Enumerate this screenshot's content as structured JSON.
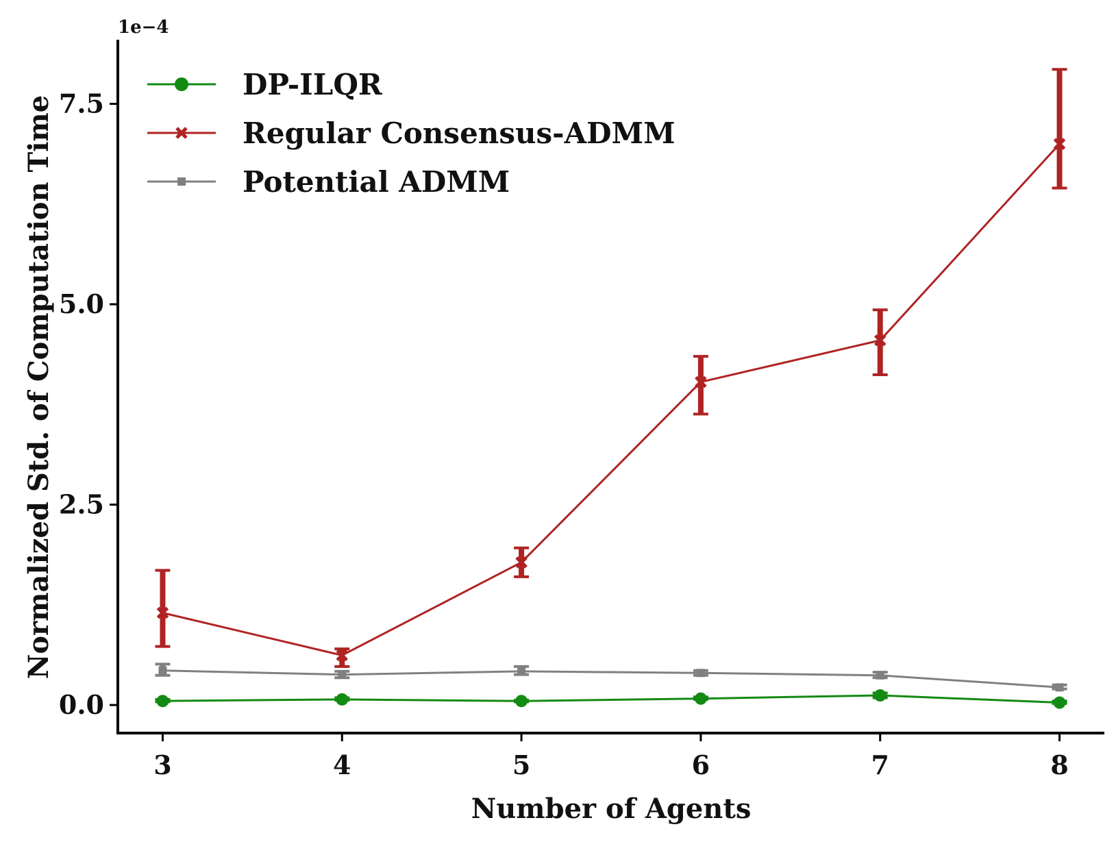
{
  "chart_data": {
    "type": "line",
    "x": [
      3,
      4,
      5,
      6,
      7,
      8
    ],
    "xticks": [
      "3",
      "4",
      "5",
      "6",
      "7",
      "8"
    ],
    "xlim": [
      2.75,
      8.25
    ],
    "ylim": [
      -0.35,
      8.3
    ],
    "yticks": [
      "0.0",
      "2.5",
      "5.0",
      "7.5"
    ],
    "ytick_values": [
      0,
      2.5,
      5.0,
      7.5
    ],
    "y_offset_label": "1e−4",
    "xlabel": "Number of Agents",
    "ylabel": "Normalized Std. of Computation Time",
    "grid": false,
    "legend_position": "top-left",
    "series": [
      {
        "name": "DP-ILQR",
        "color": "#138a13",
        "marker": "circle",
        "values": [
          0.05,
          0.07,
          0.05,
          0.08,
          0.12,
          0.03
        ],
        "err_low": [
          0.04,
          0.06,
          0.04,
          0.07,
          0.09,
          0.02
        ],
        "err_high": [
          0.07,
          0.09,
          0.06,
          0.1,
          0.15,
          0.05
        ]
      },
      {
        "name": "Regular Consensus-ADMM",
        "color": "#b02323",
        "marker": "x",
        "values": [
          1.15,
          0.62,
          1.78,
          4.03,
          4.55,
          7.0
        ],
        "err_low": [
          0.73,
          0.48,
          1.6,
          3.63,
          4.12,
          6.45
        ],
        "err_high": [
          1.68,
          0.7,
          1.96,
          4.35,
          4.93,
          7.93
        ]
      },
      {
        "name": "Potential ADMM",
        "color": "#808080",
        "marker": "square",
        "values": [
          0.43,
          0.38,
          0.42,
          0.4,
          0.37,
          0.22
        ],
        "err_low": [
          0.37,
          0.34,
          0.38,
          0.37,
          0.34,
          0.2
        ],
        "err_high": [
          0.51,
          0.42,
          0.48,
          0.43,
          0.41,
          0.25
        ]
      }
    ]
  }
}
